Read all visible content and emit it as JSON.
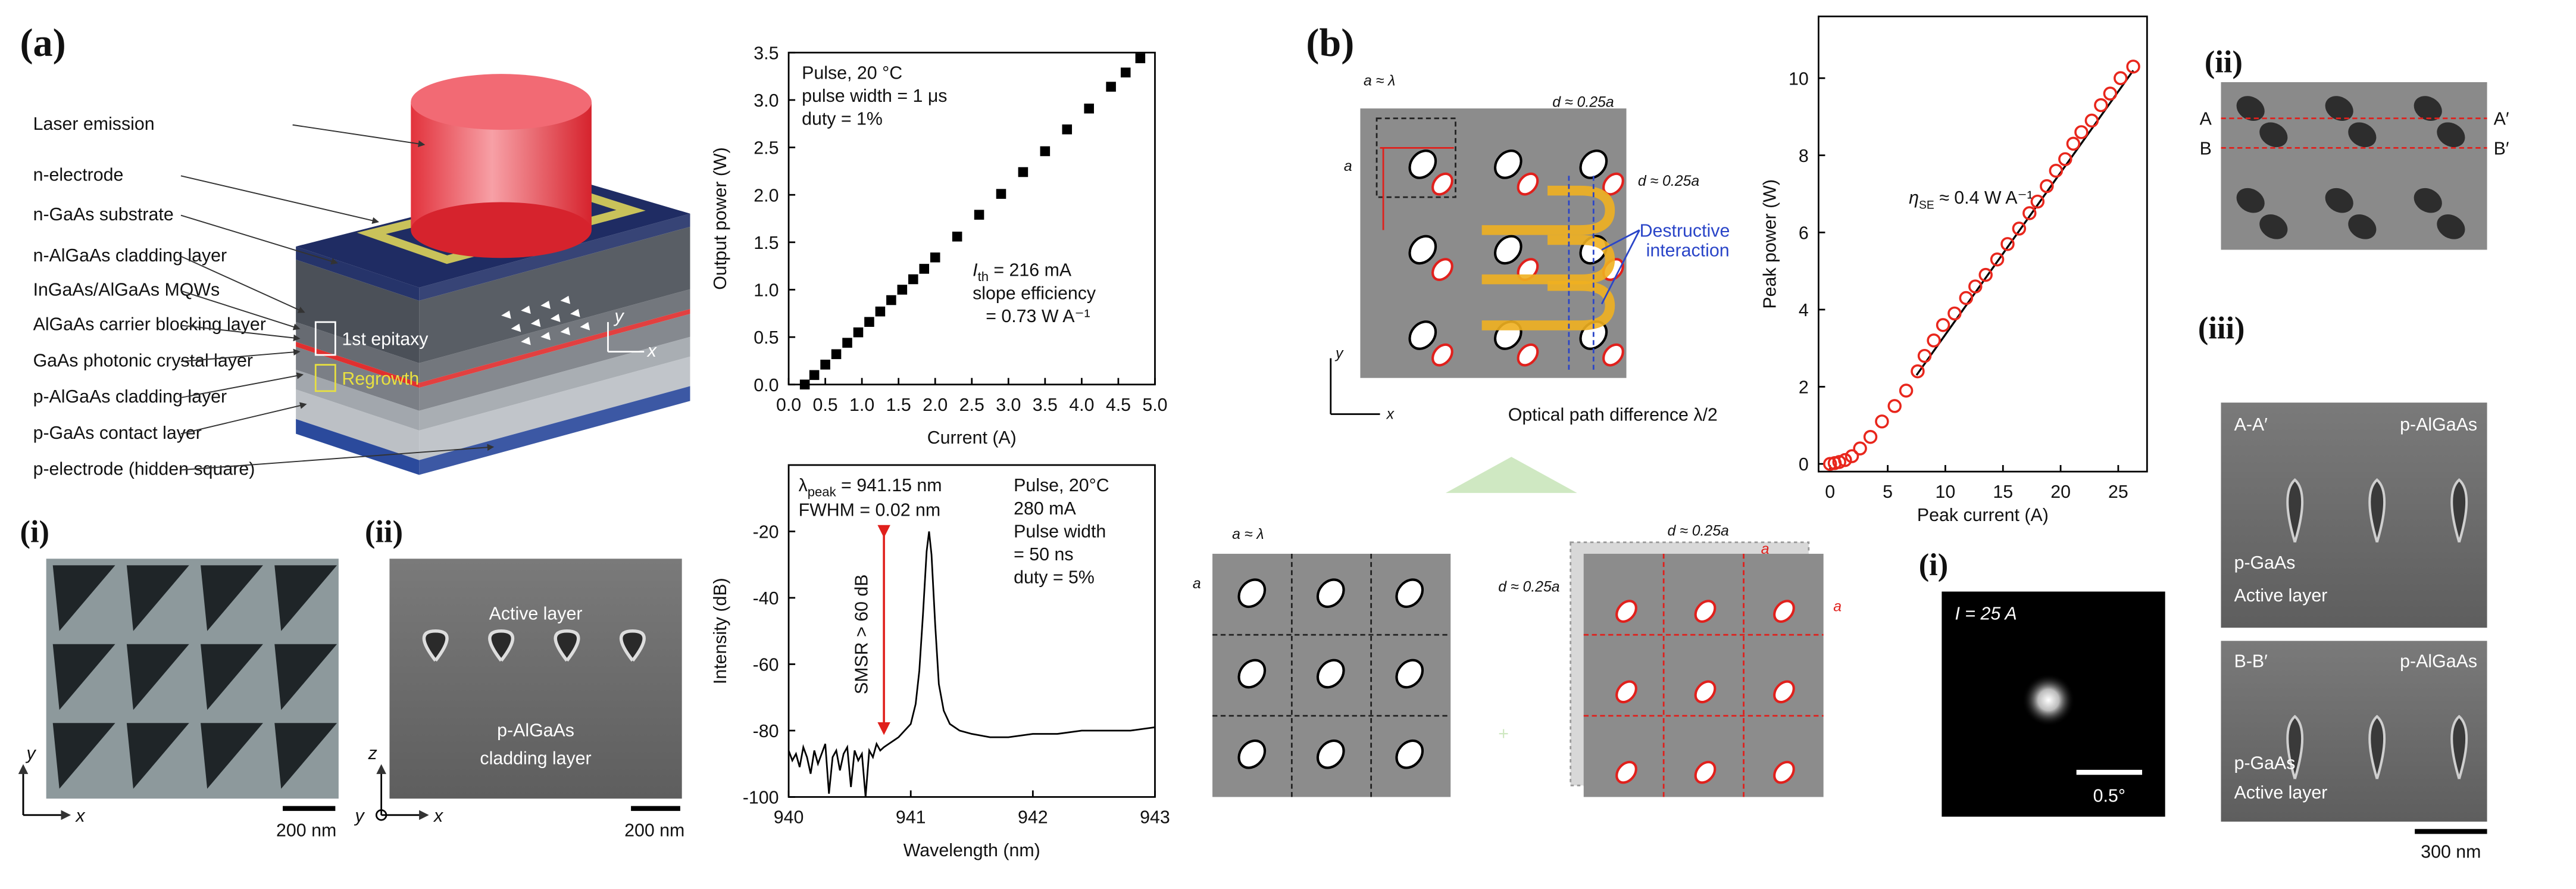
{
  "chart_data": [
    {
      "type": "scatter",
      "marker": "square",
      "color": "#000000",
      "xlabel": "Current (A)",
      "ylabel": "Output power (W)",
      "x": [
        0.22,
        0.35,
        0.5,
        0.65,
        0.8,
        0.95,
        1.1,
        1.25,
        1.4,
        1.55,
        1.7,
        1.85,
        2.0,
        2.3,
        2.6,
        2.9,
        3.2,
        3.5,
        3.8,
        4.1,
        4.4,
        4.6,
        4.8
      ],
      "values": [
        0,
        0.1,
        0.21,
        0.32,
        0.44,
        0.55,
        0.66,
        0.77,
        0.89,
        1.0,
        1.11,
        1.22,
        1.34,
        1.56,
        1.79,
        2.01,
        2.24,
        2.46,
        2.69,
        2.91,
        3.14,
        3.29,
        3.44
      ],
      "xlim": [
        0,
        5
      ],
      "ylim": [
        0,
        3.5
      ],
      "xticks": [
        {
          "value": 0,
          "label": "0.0"
        },
        {
          "value": 0.5,
          "label": "0.5"
        },
        {
          "value": 1,
          "label": "1.0"
        },
        {
          "value": 1.5,
          "label": "1.5"
        },
        {
          "value": 2,
          "label": "2.0"
        },
        {
          "value": 2.5,
          "label": "2.5"
        },
        {
          "value": 3,
          "label": "3.0"
        },
        {
          "value": 3.5,
          "label": "3.5"
        },
        {
          "value": 4,
          "label": "4.0"
        },
        {
          "value": 4.5,
          "label": "4.5"
        },
        {
          "value": 5,
          "label": "5.0"
        }
      ],
      "yticks": [
        {
          "value": 0,
          "label": "0.0"
        },
        {
          "value": 0.5,
          "label": "0.5"
        },
        {
          "value": 1,
          "label": "1.0"
        },
        {
          "value": 1.5,
          "label": "1.5"
        },
        {
          "value": 2,
          "label": "2.0"
        },
        {
          "value": 2.5,
          "label": "2.5"
        },
        {
          "value": 3,
          "label": "3.0"
        },
        {
          "value": 3.5,
          "label": "3.5"
        }
      ],
      "annotations": [
        "Pulse, 20 °C",
        "pulse width = 1 μs",
        "duty = 1%"
      ],
      "threshold": {
        "symbol": "I",
        "sub": "th",
        "text": " = 216 mA"
      },
      "slope": [
        "slope efficiency",
        "= 0.73 W A⁻¹"
      ]
    },
    {
      "type": "line",
      "color": "#000000",
      "xlabel": "Wavelength (nm)",
      "ylabel": "Intensity (dB)",
      "x": [
        940,
        940.03,
        940.06,
        940.09,
        940.12,
        940.15,
        940.18,
        940.21,
        940.24,
        940.27,
        940.3,
        940.33,
        940.36,
        940.39,
        940.42,
        940.45,
        940.48,
        940.51,
        940.54,
        940.57,
        940.6,
        940.63,
        940.66,
        940.69,
        940.72,
        940.75,
        940.78,
        940.82,
        940.86,
        940.9,
        940.95,
        941.0,
        941.04,
        941.07,
        941.1,
        941.13,
        941.15,
        941.17,
        941.2,
        941.23,
        941.27,
        941.32,
        941.4,
        941.5,
        941.65,
        941.8,
        942.0,
        942.2,
        942.4,
        942.6,
        942.8,
        943
      ],
      "values": [
        -86,
        -89,
        -87,
        -91,
        -85,
        -88,
        -93,
        -86,
        -90,
        -87,
        -84,
        -99,
        -88,
        -86,
        -92,
        -87,
        -85,
        -97,
        -86,
        -89,
        -87,
        -100,
        -86,
        -88,
        -84,
        -86,
        -85,
        -84,
        -83,
        -82,
        -80,
        -78,
        -72,
        -62,
        -45,
        -26,
        -20,
        -27,
        -48,
        -66,
        -74,
        -78,
        -80,
        -81,
        -82,
        -82,
        -81,
        -81,
        -80,
        -80,
        -80,
        -79
      ],
      "xlim": [
        940,
        943
      ],
      "ylim": [
        -100,
        0
      ],
      "xticks": [
        940,
        941,
        942,
        943
      ],
      "yticks": [
        -100,
        -80,
        -60,
        -40,
        -20
      ],
      "peak": {
        "symbol": "λ",
        "sub": "peak",
        "text": " = 941.15 nm"
      },
      "fwhm": "FWHM = 0.02 nm",
      "annotations": [
        "Pulse, 20°C",
        "280 mA",
        "Pulse width",
        "= 50 ns",
        "duty = 5%"
      ],
      "smsr": "SMSR > 60 dB"
    },
    {
      "type": "scatter",
      "marker": "circle-open",
      "color": "#e8261c",
      "xlabel": "Peak current (A)",
      "ylabel": "Peak power (W)",
      "x": [
        0,
        0.4,
        0.8,
        1.3,
        1.9,
        2.6,
        3.5,
        4.5,
        5.6,
        6.6,
        7.6,
        8.2,
        9,
        9.8,
        10.8,
        11.8,
        12.6,
        13.5,
        14.5,
        15.4,
        16.4,
        17.3,
        18,
        18.8,
        19.6,
        20.4,
        21.1,
        21.8,
        22.7,
        23.5,
        24.3,
        25.2,
        26.3
      ],
      "values": [
        0,
        0.02,
        0.05,
        0.1,
        0.2,
        0.4,
        0.7,
        1.1,
        1.5,
        1.9,
        2.4,
        2.8,
        3.2,
        3.6,
        3.9,
        4.3,
        4.6,
        4.9,
        5.3,
        5.7,
        6.1,
        6.5,
        6.8,
        7.2,
        7.6,
        7.9,
        8.3,
        8.6,
        8.9,
        9.3,
        9.6,
        10.0,
        10.3
      ],
      "fit": {
        "x": [
          7.5,
          26.3
        ],
        "y": [
          2.3,
          10.2
        ],
        "color": "#000000"
      },
      "xlim": [
        -1,
        27.5
      ],
      "ylim": [
        -0.2,
        11.6
      ],
      "xticks": [
        0,
        5,
        10,
        15,
        20,
        25
      ],
      "yticks": [
        0,
        2,
        4,
        6,
        8,
        10
      ],
      "efficiency": {
        "symbol": "η",
        "sub": "SE",
        "text": " ≈ 0.4 W A⁻¹"
      }
    }
  ],
  "figure": {
    "panel_labels": [
      "(a)",
      "(b)"
    ],
    "layers": [
      "Laser emission",
      "n-electrode",
      "n-GaAs substrate",
      "n-AlGaAs cladding layer",
      "InGaAs/AlGaAs MQWs",
      "AlGaAs carrier blocking layer",
      "GaAs photonic crystal layer",
      "p-AlGaAs cladding layer",
      "p-GaAs contact layer",
      "p-electrode (hidden square)"
    ],
    "device_labels": [
      "1st epitaxy",
      "Regrowth",
      "y",
      "x"
    ],
    "sem_i": {
      "label": "(i)",
      "scale": "200 nm",
      "axes": [
        "y",
        "x"
      ]
    },
    "sem_ii": {
      "label": "(ii)",
      "texts": [
        "Active layer",
        "p-AlGaAs",
        "cladding layer"
      ],
      "scale": "200 nm",
      "axes": [
        "z",
        "y",
        "x"
      ]
    },
    "pc_top": [
      "a ≈ λ",
      "a",
      "d ≈ 0.25a",
      "d ≈ 0.25a",
      "Destructive",
      "interaction",
      "Optical path difference λ/2",
      "y",
      "x"
    ],
    "grid_left": [
      "a ≈ λ",
      "a"
    ],
    "grid_right": [
      "d ≈ 0.25a",
      "d ≈ 0.25a",
      "a",
      "a"
    ],
    "far_field": {
      "label": "(i)",
      "current": "I = 25 A",
      "scale": "0.5°"
    },
    "sem_top": {
      "label": "(ii)",
      "marks": [
        "A",
        "B",
        "A′",
        "B′"
      ]
    },
    "sem_cross": {
      "label": "(iii)",
      "first": [
        "A-A′",
        "p-AlGaAs",
        "p-GaAs",
        "Active layer"
      ],
      "second": [
        "B-B′",
        "p-AlGaAs",
        "p-GaAs",
        "Active layer"
      ],
      "scale": "300 nm"
    }
  }
}
